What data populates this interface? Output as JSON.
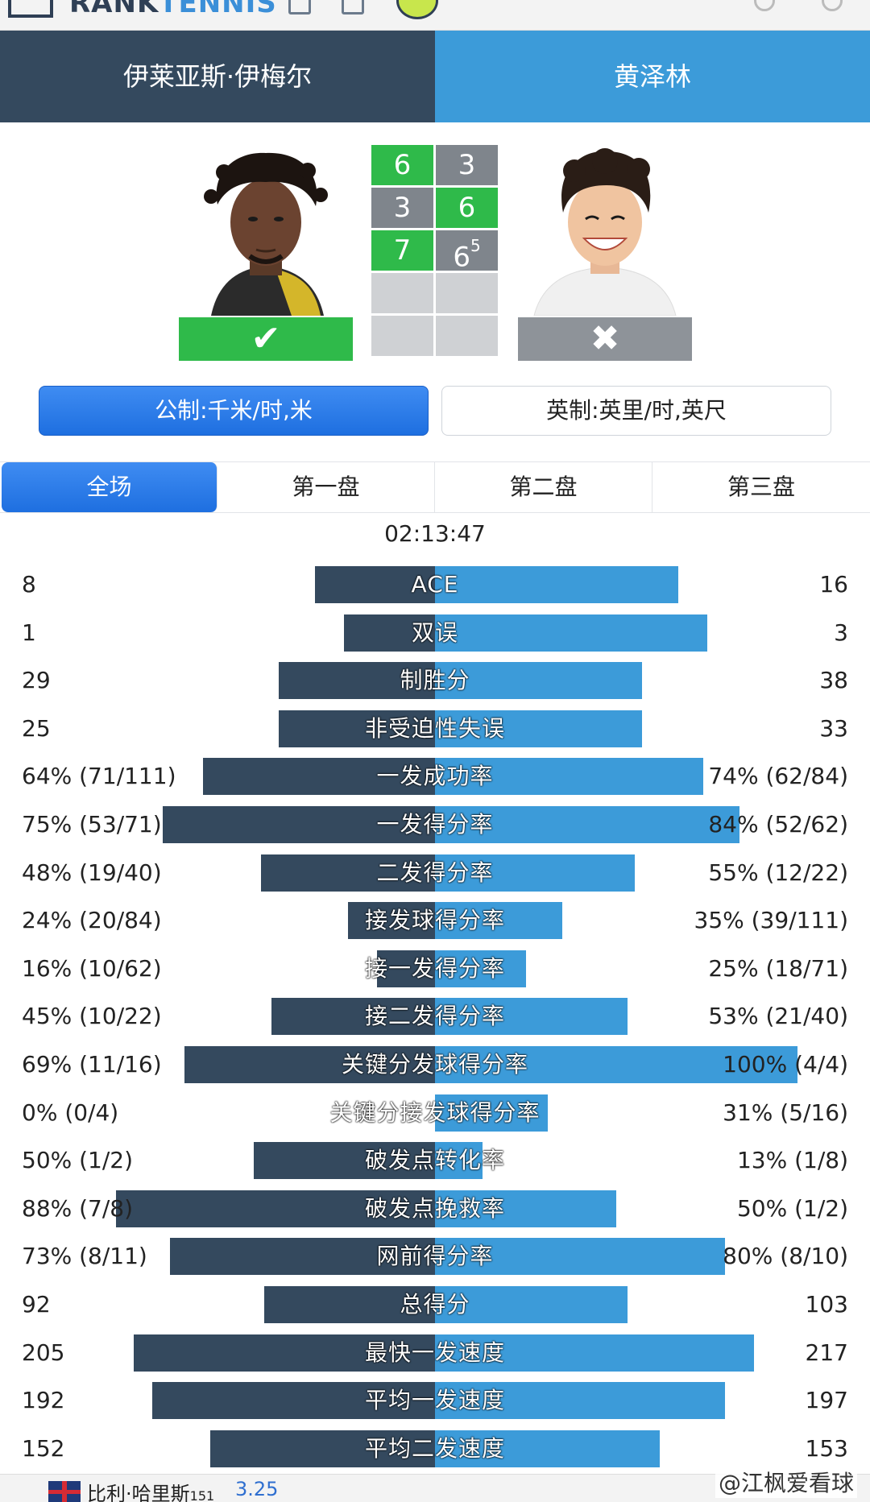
{
  "players": {
    "left": {
      "name": "伊莱亚斯·伊梅尔",
      "result_mark": "✔"
    },
    "right": {
      "name": "黄泽林",
      "result_mark": "✖"
    }
  },
  "scoreboard": {
    "sets": [
      {
        "left": "6",
        "right": "3",
        "left_won": true
      },
      {
        "left": "3",
        "right": "6",
        "left_won": false
      },
      {
        "left": "7",
        "right": "6",
        "right_tiebreak": "5",
        "left_won": true
      }
    ]
  },
  "units": {
    "metric": "公制:千米/时,米",
    "imperial": "英制:英里/时,英尺",
    "selected": "metric"
  },
  "tabs": [
    "全场",
    "第一盘",
    "第二盘",
    "第三盘"
  ],
  "duration": "02:13:47",
  "stats": [
    {
      "label": "ACE",
      "left": "8",
      "right": "16",
      "left_ratio": 0.33,
      "right_ratio": 0.67
    },
    {
      "label": "双误",
      "left": "1",
      "right": "3",
      "left_ratio": 0.25,
      "right_ratio": 0.75
    },
    {
      "label": "制胜分",
      "left": "29",
      "right": "38",
      "left_ratio": 0.43,
      "right_ratio": 0.57
    },
    {
      "label": "非受迫性失误",
      "left": "25",
      "right": "33",
      "left_ratio": 0.43,
      "right_ratio": 0.57
    },
    {
      "label": "一发成功率",
      "left": "64% (71/111)",
      "right": "74% (62/84)",
      "left_ratio": 0.64,
      "right_ratio": 0.74
    },
    {
      "label": "一发得分率",
      "left": "75% (53/71)",
      "right": "84% (52/62)",
      "left_ratio": 0.75,
      "right_ratio": 0.84
    },
    {
      "label": "二发得分率",
      "left": "48% (19/40)",
      "right": "55% (12/22)",
      "left_ratio": 0.48,
      "right_ratio": 0.55
    },
    {
      "label": "接发球得分率",
      "left": "24% (20/84)",
      "right": "35% (39/111)",
      "left_ratio": 0.24,
      "right_ratio": 0.35
    },
    {
      "label": "接一发得分率",
      "left": "16% (10/62)",
      "right": "25% (18/71)",
      "left_ratio": 0.16,
      "right_ratio": 0.25
    },
    {
      "label": "接二发得分率",
      "left": "45% (10/22)",
      "right": "53% (21/40)",
      "left_ratio": 0.45,
      "right_ratio": 0.53
    },
    {
      "label": "关键分发球得分率",
      "left": "69% (11/16)",
      "right": "100% (4/4)",
      "left_ratio": 0.69,
      "right_ratio": 1.0
    },
    {
      "label": "关键分接发球得分率",
      "left": "0% (0/4)",
      "right": "31% (5/16)",
      "left_ratio": 0.0,
      "right_ratio": 0.31
    },
    {
      "label": "破发点转化率",
      "left": "50% (1/2)",
      "right": "13% (1/8)",
      "left_ratio": 0.5,
      "right_ratio": 0.13
    },
    {
      "label": "破发点挽救率",
      "left": "88% (7/8)",
      "right": "50% (1/2)",
      "left_ratio": 0.88,
      "right_ratio": 0.5
    },
    {
      "label": "网前得分率",
      "left": "73% (8/11)",
      "right": "80% (8/10)",
      "left_ratio": 0.73,
      "right_ratio": 0.8
    },
    {
      "label": "总得分",
      "left": "92",
      "right": "103",
      "left_ratio": 0.47,
      "right_ratio": 0.53
    },
    {
      "label": "最快一发速度",
      "left": "205",
      "right": "217",
      "left_ratio": 0.83,
      "right_ratio": 0.88
    },
    {
      "label": "平均一发速度",
      "left": "192",
      "right": "197",
      "left_ratio": 0.78,
      "right_ratio": 0.8
    },
    {
      "label": "平均二发速度",
      "left": "152",
      "right": "153",
      "left_ratio": 0.62,
      "right_ratio": 0.62
    }
  ],
  "bottom": {
    "player_name": "比利·哈里斯",
    "rank": "151",
    "odds": "3.25"
  },
  "watermark": "@江枫爱看球",
  "colors": {
    "dark": "#34495e",
    "blue": "#3c9bd9",
    "win": "#2fba4a",
    "lose": "#8e9399"
  }
}
